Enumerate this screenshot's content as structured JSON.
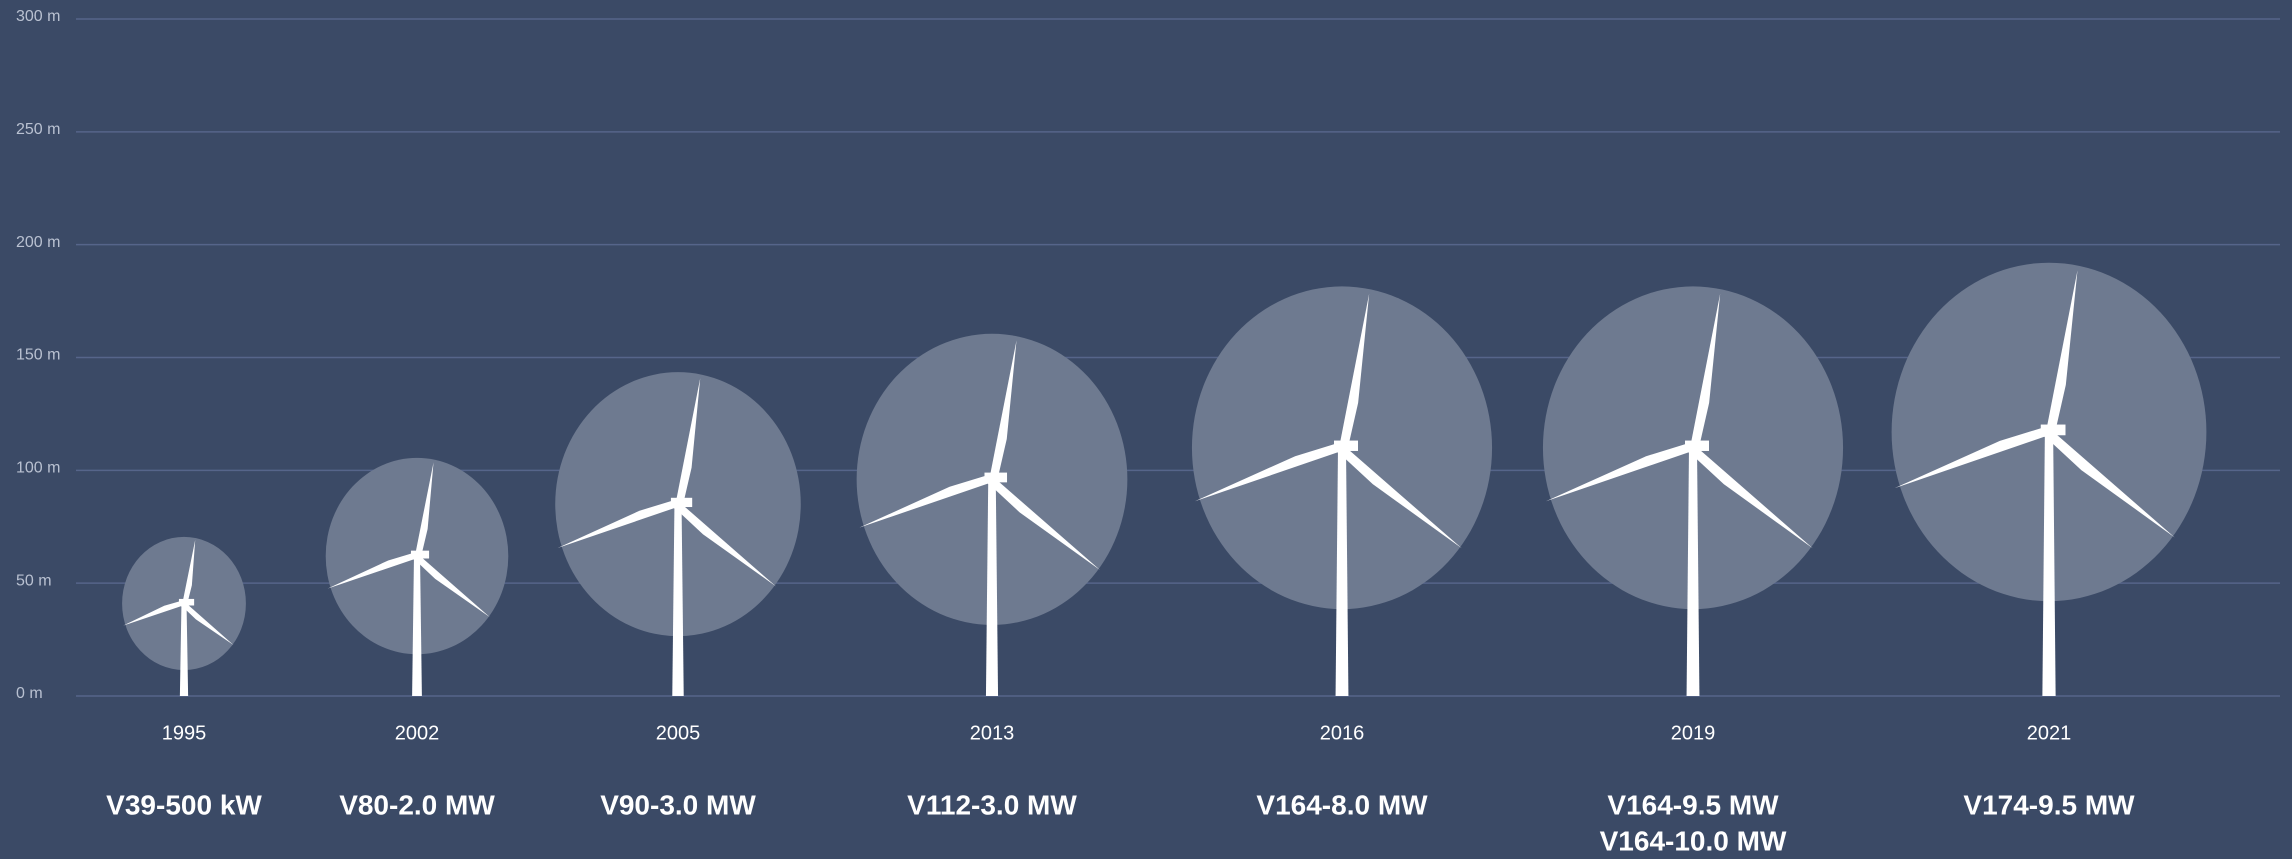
{
  "chart_data": {
    "type": "turbine",
    "categories": [
      "1995",
      "2002",
      "2005",
      "2013",
      "2016",
      "2019",
      "2021"
    ],
    "models": [
      [
        "V39-500 kW"
      ],
      [
        "V80-2.0 MW"
      ],
      [
        "V90-3.0 MW"
      ],
      [
        "V112-3.0 MW"
      ],
      [
        "V164-8.0 MW"
      ],
      [
        "V164-9.5 MW",
        "V164-10.0 MW"
      ],
      [
        "V174-9.5 MW"
      ]
    ],
    "hub_height": [
      41,
      62,
      85,
      96,
      110,
      110,
      117
    ],
    "rotor_diameter": [
      59,
      87,
      117,
      129,
      143,
      143,
      150
    ],
    "ylim": [
      0,
      300
    ],
    "yticks": [
      {
        "value": 0,
        "label": "0 m"
      },
      {
        "value": 50,
        "label": "50 m"
      },
      {
        "value": 100,
        "label": "100 m"
      },
      {
        "value": 150,
        "label": "150 m"
      },
      {
        "value": 200,
        "label": "200 m"
      },
      {
        "value": 250,
        "label": "250 m"
      },
      {
        "value": 300,
        "label": "300 m"
      }
    ],
    "grid": true,
    "background": "#3b4a66",
    "rotor_color": "#6e7a90",
    "turbine_color": "#ffffff",
    "grid_color": "#56658a"
  }
}
